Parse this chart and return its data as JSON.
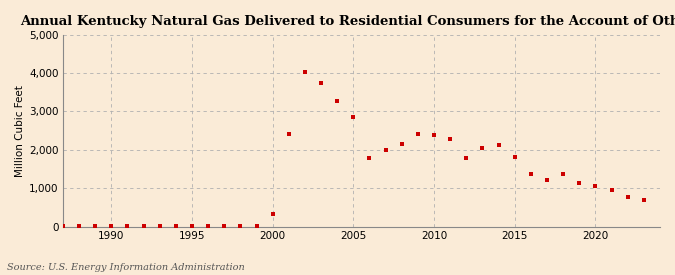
{
  "title": "Annual Kentucky Natural Gas Delivered to Residential Consumers for the Account of Others",
  "ylabel": "Million Cubic Feet",
  "source": "Source: U.S. Energy Information Administration",
  "background_color": "#faebd7",
  "plot_bg_color": "#faebd7",
  "marker_color": "#cc0000",
  "years": [
    1987,
    1988,
    1989,
    1990,
    1991,
    1992,
    1993,
    1994,
    1995,
    1996,
    1997,
    1998,
    1999,
    2000,
    2001,
    2002,
    2003,
    2004,
    2005,
    2006,
    2007,
    2008,
    2009,
    2010,
    2011,
    2012,
    2013,
    2014,
    2015,
    2016,
    2017,
    2018,
    2019,
    2020,
    2021,
    2022,
    2023
  ],
  "values": [
    3,
    3,
    4,
    4,
    4,
    4,
    4,
    4,
    5,
    5,
    4,
    4,
    4,
    340,
    2400,
    4020,
    3750,
    3280,
    2850,
    1780,
    2000,
    2150,
    2420,
    2380,
    2280,
    1780,
    2060,
    2130,
    1820,
    1360,
    1220,
    1380,
    1130,
    1070,
    960,
    780,
    690
  ],
  "xlim": [
    1987,
    2024
  ],
  "ylim": [
    0,
    5000
  ],
  "yticks": [
    0,
    1000,
    2000,
    3000,
    4000,
    5000
  ],
  "xticks": [
    1990,
    1995,
    2000,
    2005,
    2010,
    2015,
    2020
  ],
  "title_fontsize": 9.5,
  "ylabel_fontsize": 7.5,
  "tick_fontsize": 7.5,
  "source_fontsize": 7.0
}
